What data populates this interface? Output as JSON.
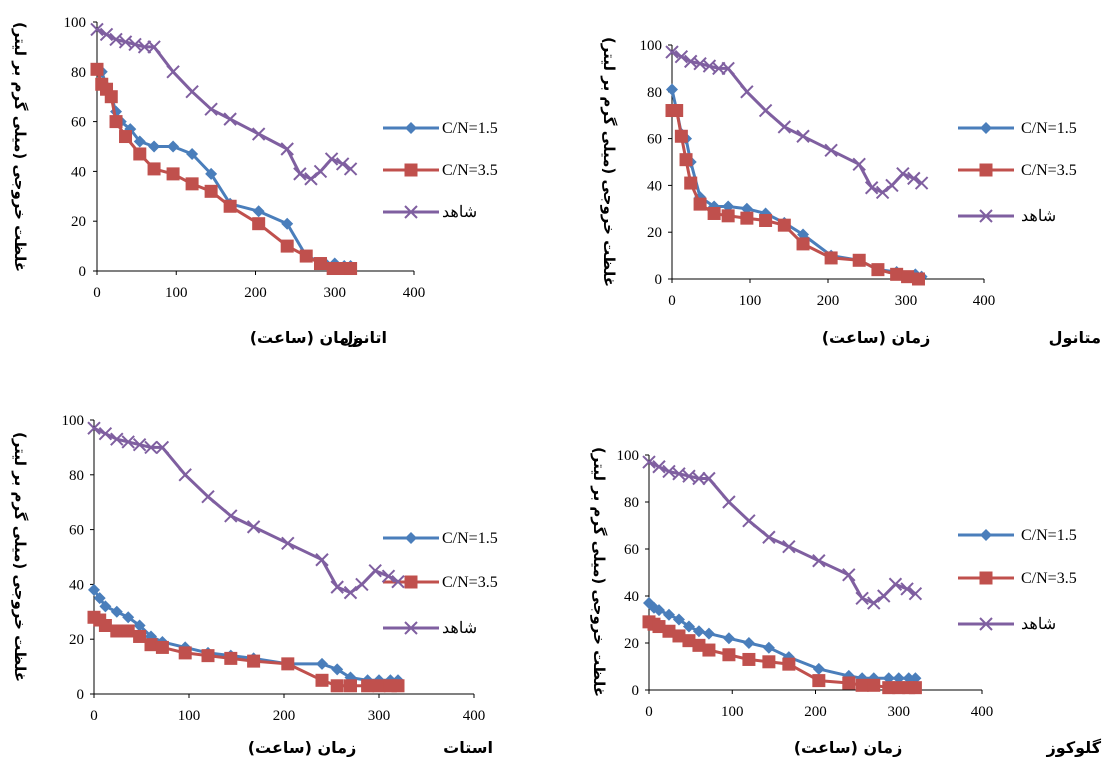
{
  "colors": {
    "series1": "#4a7ebb",
    "series2": "#c0504d",
    "series3": "#7f5fa0",
    "axis": "#000000"
  },
  "chart_data": [
    {
      "type": "line",
      "title": "اتانول",
      "xlabel": "زمان (ساعت)",
      "ylabel": "غلظت خروجی (میلی گرم بر لیتر)",
      "xlim": [
        0,
        400
      ],
      "ylim": [
        0,
        100
      ],
      "xticks": [
        0,
        100,
        200,
        300,
        400
      ],
      "yticks": [
        0,
        20,
        40,
        60,
        80,
        100
      ],
      "xtick_labels": [
        "0",
        "100",
        "200",
        "300",
        "400"
      ],
      "ytick_labels": [
        "0",
        "20",
        "40",
        "60",
        "80",
        "100"
      ],
      "legend": "right",
      "series": [
        {
          "name": "C/N=1.5",
          "marker": "diamond",
          "color": "#4a7ebb",
          "points": [
            [
              0,
              81
            ],
            [
              6,
              80
            ],
            [
              12,
              74
            ],
            [
              18,
              70
            ],
            [
              24,
              64
            ],
            [
              30,
              60
            ],
            [
              42,
              57
            ],
            [
              54,
              52
            ],
            [
              72,
              50
            ],
            [
              96,
              50
            ],
            [
              120,
              47
            ],
            [
              144,
              39
            ],
            [
              168,
              27
            ],
            [
              204,
              24
            ],
            [
              240,
              19
            ],
            [
              264,
              6
            ],
            [
              288,
              3
            ],
            [
              300,
              3
            ],
            [
              312,
              2
            ],
            [
              320,
              2
            ]
          ]
        },
        {
          "name": "C/N=3.5",
          "marker": "square",
          "color": "#c0504d",
          "points": [
            [
              0,
              81
            ],
            [
              6,
              75
            ],
            [
              12,
              73
            ],
            [
              18,
              70
            ],
            [
              24,
              60
            ],
            [
              36,
              54
            ],
            [
              54,
              47
            ],
            [
              72,
              41
            ],
            [
              96,
              39
            ],
            [
              120,
              35
            ],
            [
              144,
              32
            ],
            [
              168,
              26
            ],
            [
              204,
              19
            ],
            [
              240,
              10
            ],
            [
              264,
              6
            ],
            [
              282,
              3
            ],
            [
              298,
              1
            ],
            [
              314,
              1
            ],
            [
              320,
              1
            ]
          ]
        },
        {
          "name": "شاهد",
          "marker": "x",
          "color": "#7f5fa0",
          "points": [
            [
              0,
              97
            ],
            [
              12,
              95
            ],
            [
              24,
              93
            ],
            [
              36,
              92
            ],
            [
              48,
              91
            ],
            [
              60,
              90
            ],
            [
              72,
              90
            ],
            [
              96,
              80
            ],
            [
              120,
              72
            ],
            [
              144,
              65
            ],
            [
              168,
              61
            ],
            [
              204,
              55
            ],
            [
              240,
              49
            ],
            [
              256,
              39
            ],
            [
              270,
              37
            ],
            [
              282,
              40
            ],
            [
              296,
              45
            ],
            [
              310,
              43
            ],
            [
              320,
              41
            ]
          ]
        }
      ]
    },
    {
      "type": "line",
      "title": "متانول",
      "xlabel": "زمان (ساعت)",
      "ylabel": "غلظت خروجی (میلی گرم بر لیتر)",
      "xlim": [
        0,
        400
      ],
      "ylim": [
        0,
        100
      ],
      "xticks": [
        0,
        100,
        200,
        300,
        400
      ],
      "yticks": [
        0,
        20,
        40,
        60,
        80,
        100
      ],
      "xtick_labels": [
        "0",
        "100",
        "200",
        "300",
        "400"
      ],
      "ytick_labels": [
        "0",
        "20",
        "40",
        "60",
        "80",
        "100"
      ],
      "legend": "right",
      "series": [
        {
          "name": "C/N=1.5",
          "marker": "diamond",
          "color": "#4a7ebb",
          "points": [
            [
              0,
              81
            ],
            [
              6,
              72
            ],
            [
              12,
              62
            ],
            [
              18,
              60
            ],
            [
              24,
              50
            ],
            [
              36,
              35
            ],
            [
              54,
              31
            ],
            [
              72,
              31
            ],
            [
              96,
              30
            ],
            [
              120,
              28
            ],
            [
              144,
              24
            ],
            [
              168,
              19
            ],
            [
              204,
              10
            ],
            [
              240,
              8
            ],
            [
              264,
              4
            ],
            [
              288,
              3
            ],
            [
              312,
              2
            ],
            [
              320,
              1
            ]
          ]
        },
        {
          "name": "C/N=3.5",
          "marker": "square",
          "color": "#c0504d",
          "points": [
            [
              0,
              72
            ],
            [
              6,
              72
            ],
            [
              12,
              61
            ],
            [
              18,
              51
            ],
            [
              24,
              41
            ],
            [
              36,
              32
            ],
            [
              54,
              28
            ],
            [
              72,
              27
            ],
            [
              96,
              26
            ],
            [
              120,
              25
            ],
            [
              144,
              23
            ],
            [
              168,
              15
            ],
            [
              204,
              9
            ],
            [
              240,
              8
            ],
            [
              264,
              4
            ],
            [
              288,
              2
            ],
            [
              302,
              1
            ],
            [
              316,
              0
            ]
          ]
        },
        {
          "name": "شاهد",
          "marker": "x",
          "color": "#7f5fa0",
          "points": [
            [
              0,
              97
            ],
            [
              12,
              95
            ],
            [
              24,
              93
            ],
            [
              36,
              92
            ],
            [
              48,
              91
            ],
            [
              60,
              90
            ],
            [
              72,
              90
            ],
            [
              96,
              80
            ],
            [
              120,
              72
            ],
            [
              144,
              65
            ],
            [
              168,
              61
            ],
            [
              204,
              55
            ],
            [
              240,
              49
            ],
            [
              256,
              39
            ],
            [
              270,
              37
            ],
            [
              282,
              40
            ],
            [
              296,
              45
            ],
            [
              310,
              43
            ],
            [
              320,
              41
            ]
          ]
        }
      ]
    },
    {
      "type": "line",
      "title": "استات",
      "xlabel": "زمان (ساعت)",
      "ylabel": "غلظت خروجی (میلی گرم بر لیتر)",
      "xlim": [
        0,
        400
      ],
      "ylim": [
        0,
        100
      ],
      "xticks": [
        0,
        100,
        200,
        300,
        400
      ],
      "yticks": [
        0,
        20,
        40,
        60,
        80,
        100
      ],
      "xtick_labels": [
        "0",
        "100",
        "200",
        "300",
        "400"
      ],
      "ytick_labels": [
        "0",
        "20",
        "40",
        "60",
        "80",
        "100"
      ],
      "legend": "right",
      "series": [
        {
          "name": "C/N=1.5",
          "marker": "diamond",
          "color": "#4a7ebb",
          "points": [
            [
              0,
              38
            ],
            [
              6,
              35
            ],
            [
              12,
              32
            ],
            [
              24,
              30
            ],
            [
              36,
              28
            ],
            [
              48,
              25
            ],
            [
              60,
              21
            ],
            [
              72,
              19
            ],
            [
              96,
              17
            ],
            [
              120,
              15
            ],
            [
              144,
              14
            ],
            [
              168,
              13
            ],
            [
              204,
              11
            ],
            [
              240,
              11
            ],
            [
              256,
              9
            ],
            [
              270,
              6
            ],
            [
              288,
              5
            ],
            [
              300,
              5
            ],
            [
              312,
              5
            ],
            [
              320,
              5
            ]
          ]
        },
        {
          "name": "C/N=3.5",
          "marker": "square",
          "color": "#c0504d",
          "points": [
            [
              0,
              28
            ],
            [
              6,
              27
            ],
            [
              12,
              25
            ],
            [
              24,
              23
            ],
            [
              36,
              23
            ],
            [
              48,
              21
            ],
            [
              60,
              18
            ],
            [
              72,
              17
            ],
            [
              96,
              15
            ],
            [
              120,
              14
            ],
            [
              144,
              13
            ],
            [
              168,
              12
            ],
            [
              204,
              11
            ],
            [
              240,
              5
            ],
            [
              256,
              3
            ],
            [
              270,
              3
            ],
            [
              288,
              3
            ],
            [
              300,
              3
            ],
            [
              312,
              3
            ],
            [
              320,
              3
            ]
          ]
        },
        {
          "name": "شاهد",
          "marker": "x",
          "color": "#7f5fa0",
          "points": [
            [
              0,
              97
            ],
            [
              12,
              95
            ],
            [
              24,
              93
            ],
            [
              36,
              92
            ],
            [
              48,
              91
            ],
            [
              60,
              90
            ],
            [
              72,
              90
            ],
            [
              96,
              80
            ],
            [
              120,
              72
            ],
            [
              144,
              65
            ],
            [
              168,
              61
            ],
            [
              204,
              55
            ],
            [
              240,
              49
            ],
            [
              256,
              39
            ],
            [
              270,
              37
            ],
            [
              282,
              40
            ],
            [
              296,
              45
            ],
            [
              310,
              43
            ],
            [
              320,
              41
            ]
          ]
        }
      ]
    },
    {
      "type": "line",
      "title": "گلوکوز",
      "xlabel": "زمان (ساعت)",
      "ylabel": "غلظت خروجی (میلی گرم بر لیتر)",
      "xlim": [
        0,
        400
      ],
      "ylim": [
        0,
        100
      ],
      "xticks": [
        0,
        100,
        200,
        300,
        400
      ],
      "yticks": [
        0,
        20,
        40,
        60,
        80,
        100
      ],
      "xtick_labels": [
        "0",
        "100",
        "200",
        "300",
        "400"
      ],
      "ytick_labels": [
        "0",
        "20",
        "40",
        "60",
        "80",
        "100"
      ],
      "legend": "right",
      "series": [
        {
          "name": "C/N=1.5",
          "marker": "diamond",
          "color": "#4a7ebb",
          "points": [
            [
              0,
              37
            ],
            [
              6,
              35
            ],
            [
              12,
              34
            ],
            [
              24,
              32
            ],
            [
              36,
              30
            ],
            [
              48,
              27
            ],
            [
              60,
              25
            ],
            [
              72,
              24
            ],
            [
              96,
              22
            ],
            [
              120,
              20
            ],
            [
              144,
              18
            ],
            [
              168,
              14
            ],
            [
              204,
              9
            ],
            [
              240,
              6
            ],
            [
              256,
              5
            ],
            [
              270,
              5
            ],
            [
              288,
              5
            ],
            [
              300,
              5
            ],
            [
              312,
              5
            ],
            [
              320,
              5
            ]
          ]
        },
        {
          "name": "C/N=3.5",
          "marker": "square",
          "color": "#c0504d",
          "points": [
            [
              0,
              29
            ],
            [
              6,
              28
            ],
            [
              12,
              27
            ],
            [
              24,
              25
            ],
            [
              36,
              23
            ],
            [
              48,
              21
            ],
            [
              60,
              19
            ],
            [
              72,
              17
            ],
            [
              96,
              15
            ],
            [
              120,
              13
            ],
            [
              144,
              12
            ],
            [
              168,
              11
            ],
            [
              204,
              4
            ],
            [
              240,
              3
            ],
            [
              256,
              2
            ],
            [
              270,
              2
            ],
            [
              288,
              1
            ],
            [
              300,
              1
            ],
            [
              312,
              1
            ],
            [
              320,
              1
            ]
          ]
        },
        {
          "name": "شاهد",
          "marker": "x",
          "color": "#7f5fa0",
          "points": [
            [
              0,
              97
            ],
            [
              12,
              95
            ],
            [
              24,
              93
            ],
            [
              36,
              92
            ],
            [
              48,
              91
            ],
            [
              60,
              90
            ],
            [
              72,
              90
            ],
            [
              96,
              80
            ],
            [
              120,
              72
            ],
            [
              144,
              65
            ],
            [
              168,
              61
            ],
            [
              204,
              55
            ],
            [
              240,
              49
            ],
            [
              256,
              39
            ],
            [
              270,
              37
            ],
            [
              282,
              40
            ],
            [
              296,
              45
            ],
            [
              310,
              43
            ],
            [
              320,
              41
            ]
          ]
        }
      ]
    }
  ]
}
